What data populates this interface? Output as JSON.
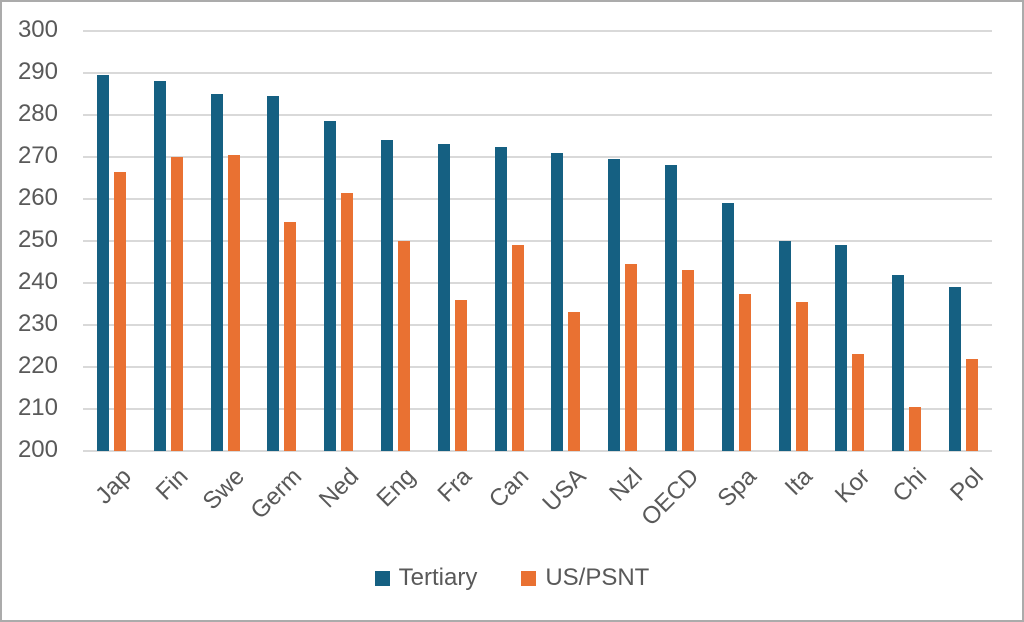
{
  "chart_data": {
    "type": "bar",
    "title": "",
    "categories": [
      "Jap",
      "Fin",
      "Swe",
      "Germ",
      "Ned",
      "Eng",
      "Fra",
      "Can",
      "USA",
      "Nzl",
      "OECD",
      "Spa",
      "Ita",
      "Kor",
      "Chi",
      "Pol"
    ],
    "series": [
      {
        "name": "Tertiary",
        "color": "#156082",
        "values": [
          289.5,
          288,
          285,
          284.5,
          278.5,
          274,
          273,
          272.5,
          271,
          269.5,
          268,
          259,
          250,
          249,
          242,
          239
        ]
      },
      {
        "name": "US/PSNT",
        "color": "#E97132",
        "values": [
          266.5,
          270,
          270.5,
          254.5,
          261.5,
          250,
          236,
          249,
          233,
          244.5,
          243,
          237.5,
          235.5,
          223,
          210.5,
          222
        ]
      }
    ],
    "xlabel": "",
    "ylabel": "",
    "ylim": [
      200,
      300
    ],
    "yticks": [
      300,
      290,
      280,
      270,
      260,
      250,
      240,
      230,
      220,
      210,
      200
    ],
    "grid": true,
    "legend_position": "bottom",
    "colors": {
      "gridline": "#D9D9D9",
      "axis_text": "#595959",
      "frame_border": "#ABABAB",
      "background": "#FFFFFF"
    }
  }
}
